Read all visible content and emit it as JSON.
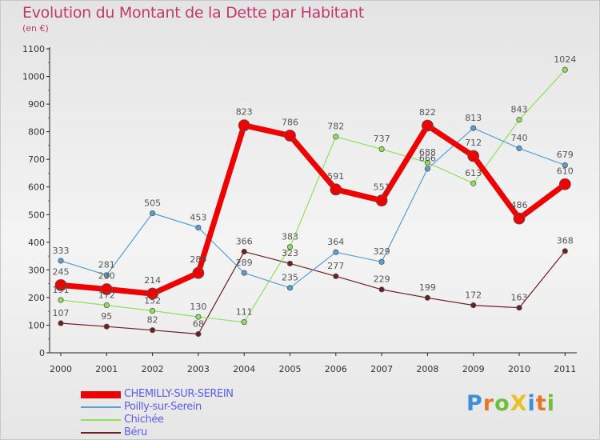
{
  "title": "Evolution du Montant de la Dette par Habitant",
  "subtitle": "(en €)",
  "brand": {
    "text": "ProXiti",
    "letter_colors": [
      "#3a8fd8",
      "#e8762a",
      "#6fbf3a",
      "#e8c02a",
      "#3a8fd8",
      "#e8762a",
      "#6fbf3a"
    ]
  },
  "chart_data": {
    "type": "line",
    "categories": [
      "2000",
      "2001",
      "2002",
      "2003",
      "2004",
      "2005",
      "2006",
      "2007",
      "2008",
      "2009",
      "2010",
      "2011"
    ],
    "ylim": [
      0,
      1100
    ],
    "yticks": [
      0,
      100,
      200,
      300,
      400,
      500,
      600,
      700,
      800,
      900,
      1000,
      1100
    ],
    "xlabel": "",
    "ylabel": "",
    "grid": false,
    "legend_position": "bottom-left",
    "series": [
      {
        "name": "Béru",
        "color": "#6b1f1f",
        "line_width": 1.2,
        "marker_radius": 3.2,
        "label_color": "#555555",
        "values": [
          107,
          95,
          82,
          68,
          366,
          323,
          277,
          229,
          199,
          172,
          163,
          368
        ]
      },
      {
        "name": "Chichée",
        "color": "#8fe05a",
        "line_width": 1.2,
        "marker_radius": 3.2,
        "label_color": "#555555",
        "values": [
          191,
          172,
          152,
          130,
          111,
          383,
          782,
          737,
          688,
          613,
          843,
          1024
        ]
      },
      {
        "name": "Poilly-sur-Serein",
        "color": "#5a9fd4",
        "line_width": 1.2,
        "marker_radius": 3.2,
        "label_color": "#555555",
        "values": [
          333,
          281,
          505,
          453,
          289,
          235,
          364,
          329,
          666,
          813,
          740,
          679
        ]
      },
      {
        "name": "CHEMILLY-SUR-SEREIN",
        "color": "#ee0000",
        "line_width": 7,
        "marker_radius": 7,
        "label_color": "#555555",
        "values": [
          245,
          230,
          214,
          289,
          823,
          786,
          591,
          551,
          822,
          712,
          486,
          610
        ]
      }
    ],
    "legend_order": [
      "CHEMILLY-SUR-SEREIN",
      "Poilly-sur-Serein",
      "Chichée",
      "Béru"
    ]
  }
}
